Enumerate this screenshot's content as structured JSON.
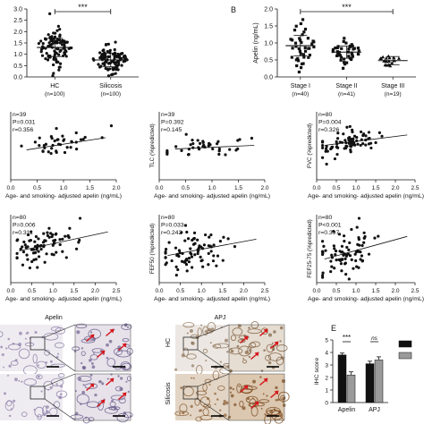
{
  "panel_letters": {
    "b": "B",
    "e": "E"
  },
  "micro_panels": {
    "apelin_label": "Apelin",
    "apj_label": "APJ",
    "hc_label": "HC",
    "silicosis_label": "Silicosis"
  },
  "chart_data": [
    {
      "id": "A",
      "type": "scatter",
      "title": "",
      "ylabel": "",
      "ylim": [
        0,
        3.0
      ],
      "yticks": [
        "0.0",
        "0.5",
        "1.0",
        "1.5",
        "2.0",
        "2.5",
        "3.0"
      ],
      "categories": [
        "HC",
        "Silicosis"
      ],
      "category_ns": [
        "(n=100)",
        "(n=100)"
      ],
      "group_means": [
        1.3,
        0.75
      ],
      "group_sd": [
        0.4,
        0.3
      ],
      "group_n": [
        100,
        100
      ],
      "significance": {
        "pair": [
          0,
          1
        ],
        "label": "***"
      }
    },
    {
      "id": "B",
      "type": "scatter",
      "title": "",
      "ylabel": "Apelin (ng/mL)",
      "ylim": [
        0,
        2.0
      ],
      "yticks": [
        "0.0",
        "0.5",
        "1.0",
        "1.5",
        "2.0"
      ],
      "categories": [
        "Stage I",
        "Stage II",
        "Stage III"
      ],
      "category_ns": [
        "(n=40)",
        "(n=41)",
        "(n=19)"
      ],
      "group_means": [
        0.92,
        0.73,
        0.48
      ],
      "group_sd": [
        0.3,
        0.18,
        0.12
      ],
      "group_n": [
        40,
        41,
        19
      ],
      "markers": [
        "square",
        "square",
        "triangle"
      ],
      "significance": {
        "pair": [
          0,
          2
        ],
        "label": "***"
      }
    },
    {
      "id": "C1",
      "type": "scatter",
      "ylabel": "",
      "xlabel": "Age- and smoking- adjusted apelin (ng/mL)",
      "xlim": [
        0,
        2.0
      ],
      "xticks": [
        "0.0",
        "0.5",
        "1.0",
        "1.5",
        "2.0"
      ],
      "ylim": [
        0,
        150
      ],
      "stats": [
        "n=39",
        "P=0.031",
        "r=0.356"
      ],
      "fit": {
        "x": [
          0.3,
          1.8
        ],
        "y": [
          66,
          93
        ]
      },
      "n": 39,
      "x_center": 0.9,
      "x_sd": 0.35,
      "y_center": 73,
      "y_sd": 12
    },
    {
      "id": "C2",
      "type": "scatter",
      "ylabel": "TLC (%predicted)",
      "xlabel": "Age- and smoking- adjusted apelin (ng/mL)",
      "xlim": [
        0,
        2.0
      ],
      "xticks": [
        "0.0",
        "0.5",
        "1.0",
        "1.5",
        "2.0"
      ],
      "ylim": [
        0,
        150
      ],
      "stats": [
        "n=39",
        "P=0.392",
        "r=0.145"
      ],
      "fit": {
        "x": [
          0.3,
          1.8
        ],
        "y": [
          68,
          76
        ]
      },
      "n": 39,
      "x_center": 0.9,
      "x_sd": 0.35,
      "y_center": 70,
      "y_sd": 11
    },
    {
      "id": "C3",
      "type": "scatter",
      "ylabel": "FVC (%predicted)",
      "xlabel": "Age- and smoking- adjusted apelin (ng/mL)",
      "xlim": [
        0,
        2.5
      ],
      "xticks": [
        "0.0",
        "0.5",
        "1.0",
        "1.5",
        "2.0",
        "2.5"
      ],
      "ylim": [
        0,
        150
      ],
      "stats": [
        "n=80",
        "P=0.004",
        "r=0.326"
      ],
      "fit": {
        "x": [
          0.2,
          2.3
        ],
        "y": [
          76,
          99
        ]
      },
      "n": 80,
      "x_center": 0.8,
      "x_sd": 0.4,
      "y_center": 84,
      "y_sd": 13
    },
    {
      "id": "D1",
      "type": "scatter",
      "ylabel": "",
      "xlabel": "Age- and smoking- adjusted apelin (ng/mL)",
      "xlim": [
        0,
        2.5
      ],
      "xticks": [
        "0.0",
        "0.5",
        "1.0",
        "1.5",
        "2.0",
        "2.5"
      ],
      "ylim": [
        0,
        150
      ],
      "stats": [
        "n=80",
        "P=0.006",
        "r=0.311"
      ],
      "fit": {
        "x": [
          0.2,
          2.3
        ],
        "y": [
          70,
          112
        ]
      },
      "n": 80,
      "x_center": 0.75,
      "x_sd": 0.4,
      "y_center": 80,
      "y_sd": 20
    },
    {
      "id": "D2",
      "type": "scatter",
      "ylabel": "FEF50 (%predicted)",
      "xlabel": "Age- and smoking- adjusted apelin (ng/mL)",
      "xlim": [
        0,
        2.5
      ],
      "xticks": [
        "0.0",
        "0.5",
        "1.0",
        "1.5",
        "2.0",
        "2.5"
      ],
      "ylim": [
        0,
        150
      ],
      "stats": [
        "n=80",
        "P=0.033",
        "r=0.242"
      ],
      "fit": {
        "x": [
          0.2,
          2.3
        ],
        "y": [
          60,
          96
        ]
      },
      "n": 80,
      "x_center": 0.8,
      "x_sd": 0.4,
      "y_center": 72,
      "y_sd": 25
    },
    {
      "id": "D3",
      "type": "scatter",
      "ylabel": "FEF25-75 (%predicted)",
      "xlabel": "Age- and smoking- adjusted apelin (ng/mL)",
      "xlim": [
        0,
        2.5
      ],
      "xticks": [
        "0.0",
        "0.5",
        "1.0",
        "1.5",
        "2.0",
        "2.5"
      ],
      "ylim": [
        0,
        150
      ],
      "stats": [
        "n=80",
        "P<0.001",
        "r=0.397"
      ],
      "fit": {
        "x": [
          0.2,
          2.3
        ],
        "y": [
          52,
          102
        ]
      },
      "n": 80,
      "x_center": 0.8,
      "x_sd": 0.4,
      "y_center": 70,
      "y_sd": 25
    },
    {
      "id": "E",
      "type": "bar",
      "ylabel": "IHC score",
      "categories": [
        "Apelin",
        "APJ"
      ],
      "ylim": [
        0,
        5
      ],
      "yticks": [
        "0",
        "1",
        "2",
        "3",
        "4",
        "5"
      ],
      "series": [
        {
          "color": "#111111",
          "values": [
            3.8,
            3.1
          ],
          "err": [
            0.15,
            0.2
          ]
        },
        {
          "color": "#9a9a9a",
          "values": [
            2.2,
            3.4
          ],
          "err": [
            0.25,
            0.25
          ]
        }
      ],
      "significance": [
        {
          "category": 0,
          "label": "***"
        },
        {
          "category": 1,
          "label": "ns"
        }
      ]
    }
  ]
}
